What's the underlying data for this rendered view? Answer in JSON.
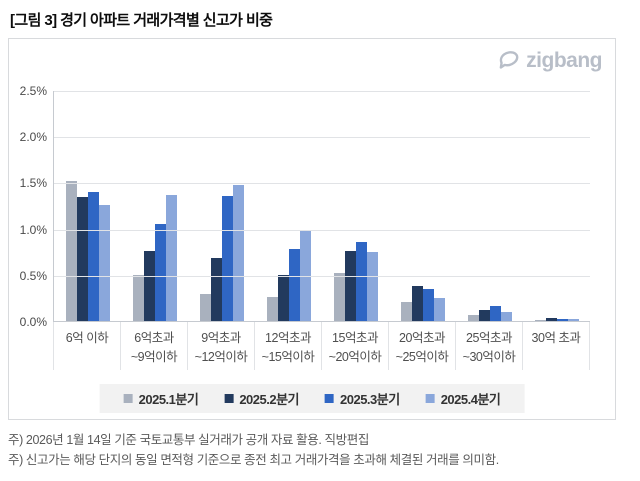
{
  "title": "[그림 3] 경기 아파트 거래가격별 신고가 비중",
  "logo": {
    "text": "zigbang",
    "color": "#b8bec8"
  },
  "chart_data": {
    "type": "bar",
    "title": "경기 아파트 거래가격별 신고가 비중",
    "categories": [
      [
        "6억 이하"
      ],
      [
        "6억초과",
        "~9억이하"
      ],
      [
        "9억초과",
        "~12억이하"
      ],
      [
        "12억초과",
        "~15억이하"
      ],
      [
        "15억초과",
        "~20억이하"
      ],
      [
        "20억초과",
        "~25억이하"
      ],
      [
        "25억초과",
        "~30억이하"
      ],
      [
        "30억 초과"
      ]
    ],
    "series": [
      {
        "name": "2025.1분기",
        "color": "#a9b1be",
        "values": [
          1.51,
          0.5,
          0.29,
          0.26,
          0.52,
          0.21,
          0.07,
          0.01
        ]
      },
      {
        "name": "2025.2분기",
        "color": "#223a5e",
        "values": [
          1.34,
          0.76,
          0.68,
          0.5,
          0.76,
          0.38,
          0.12,
          0.03
        ]
      },
      {
        "name": "2025.3분기",
        "color": "#2f66c4",
        "values": [
          1.4,
          1.05,
          1.35,
          0.78,
          0.85,
          0.35,
          0.16,
          0.02
        ]
      },
      {
        "name": "2025.4분기",
        "color": "#8aa7db",
        "values": [
          1.26,
          1.36,
          1.47,
          0.97,
          0.75,
          0.25,
          0.1,
          0.02
        ]
      }
    ],
    "xlabel": "",
    "ylabel": "",
    "ylim": [
      0,
      2.5
    ],
    "ytick_step": 0.5,
    "ytick_labels": [
      "0.0%",
      "0.5%",
      "1.0%",
      "1.5%",
      "2.0%",
      "2.5%"
    ],
    "grid": true,
    "legend_position": "bottom"
  },
  "footnotes": [
    "주) 2026년 1월 14일 기준 국토교통부 실거래가 공개 자료 활용. 직방편집",
    "주) 신고가는 해당 단지의 동일 면적형 기준으로 종전 최고 거래가격을 초과해 체결된 거래를 의미함."
  ]
}
